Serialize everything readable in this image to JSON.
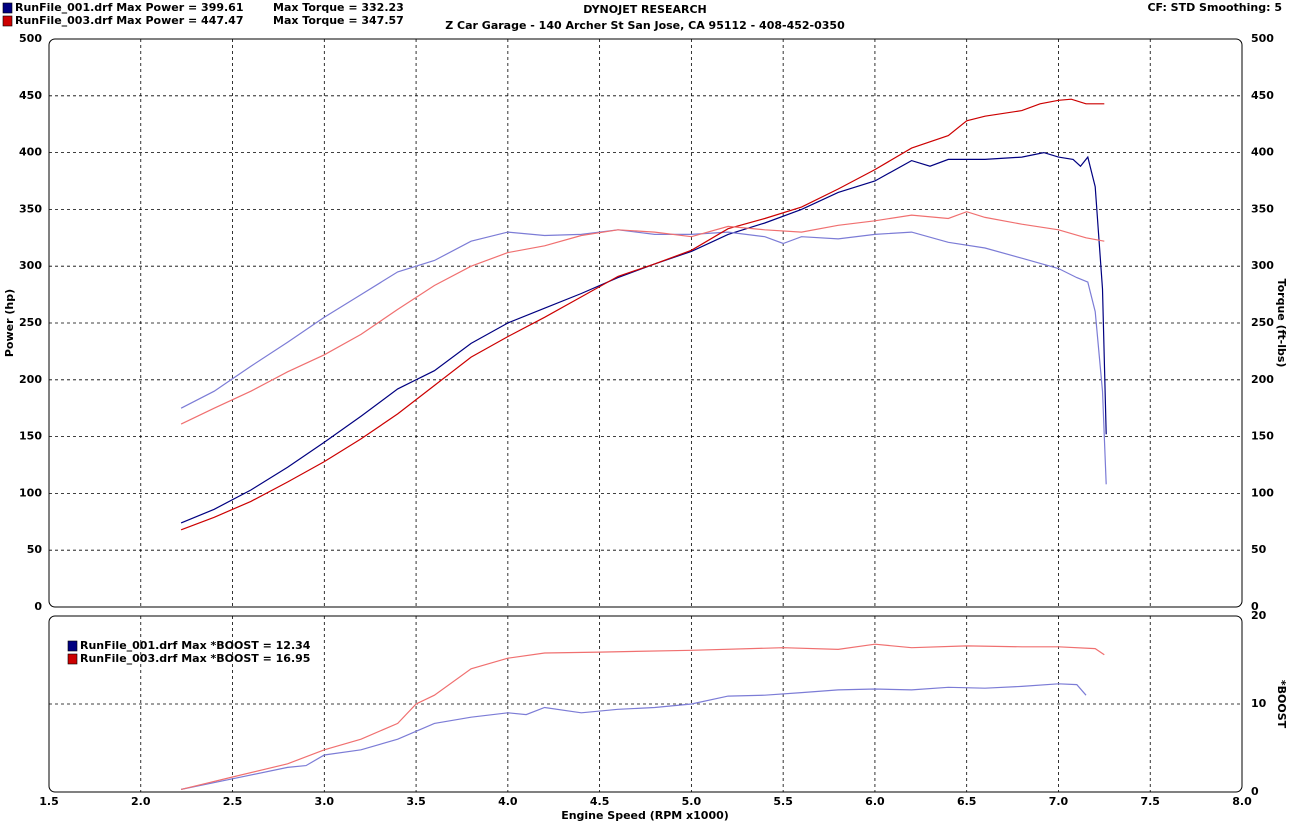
{
  "chart_data": [
    {
      "type": "line",
      "title": "DYNOJET RESEARCH",
      "subtitle": "Z Car Garage - 140 Archer St San Jose, CA 95112 - 408-452-0350",
      "annotations": [
        "CF: STD  Smoothing: 5"
      ],
      "y_label": "Power (hp)",
      "y2_label": "Torque (ft-lbs)",
      "ylim": [
        0,
        500
      ],
      "yticks": [
        0,
        50,
        100,
        150,
        200,
        250,
        300,
        350,
        400,
        450,
        500
      ],
      "y2lim": [
        0,
        500
      ],
      "y2ticks": [
        0,
        50,
        100,
        150,
        200,
        250,
        300,
        350,
        400,
        450,
        500
      ],
      "grid": true,
      "series": [
        {
          "name": "RunFile_001.drf Max Power = 399.61",
          "color": "#000080",
          "x": [
            2.22,
            2.4,
            2.6,
            2.8,
            3.0,
            3.2,
            3.4,
            3.6,
            3.8,
            4.0,
            4.2,
            4.4,
            4.6,
            4.8,
            5.0,
            5.2,
            5.4,
            5.6,
            5.8,
            6.0,
            6.2,
            6.3,
            6.4,
            6.6,
            6.8,
            6.92,
            7.0,
            7.08,
            7.12,
            7.16,
            7.2,
            7.24,
            7.26
          ],
          "values": [
            74,
            86,
            103,
            123,
            145,
            168,
            192,
            208,
            232,
            250,
            263,
            276,
            290,
            302,
            313,
            328,
            338,
            350,
            365,
            375,
            393,
            388,
            394,
            394,
            396,
            400,
            396,
            394,
            388,
            396,
            370,
            280,
            152
          ]
        },
        {
          "name": "Max Torque = 332.23",
          "color": "#7c7cd6",
          "axis": "y2",
          "x": [
            2.22,
            2.4,
            2.6,
            2.8,
            3.0,
            3.2,
            3.4,
            3.6,
            3.8,
            4.0,
            4.2,
            4.4,
            4.6,
            4.8,
            5.0,
            5.2,
            5.4,
            5.5,
            5.6,
            5.8,
            6.0,
            6.2,
            6.4,
            6.6,
            6.8,
            7.0,
            7.1,
            7.16,
            7.2,
            7.24,
            7.26
          ],
          "values": [
            175,
            190,
            212,
            233,
            255,
            275,
            295,
            305,
            322,
            330,
            327,
            328,
            332,
            328,
            328,
            330,
            326,
            320,
            326,
            324,
            328,
            330,
            321,
            316,
            307,
            298,
            290,
            286,
            260,
            190,
            108
          ]
        },
        {
          "name": "RunFile_003.drf Max Power = 447.47",
          "color": "#cc0000",
          "x": [
            2.22,
            2.4,
            2.6,
            2.8,
            3.0,
            3.2,
            3.4,
            3.6,
            3.8,
            4.0,
            4.2,
            4.4,
            4.6,
            4.8,
            5.0,
            5.2,
            5.4,
            5.6,
            5.8,
            6.0,
            6.2,
            6.4,
            6.5,
            6.6,
            6.8,
            6.9,
            7.0,
            7.07,
            7.15,
            7.25
          ],
          "values": [
            68,
            79,
            93,
            110,
            128,
            148,
            170,
            195,
            220,
            238,
            255,
            273,
            291,
            302,
            314,
            333,
            342,
            352,
            368,
            385,
            404,
            415,
            428,
            432,
            437,
            443,
            446,
            447,
            443,
            443
          ]
        },
        {
          "name": "Max Torque = 347.57",
          "color": "#f07070",
          "axis": "y2",
          "x": [
            2.22,
            2.4,
            2.6,
            2.8,
            3.0,
            3.2,
            3.4,
            3.6,
            3.8,
            4.0,
            4.2,
            4.4,
            4.6,
            4.8,
            5.0,
            5.2,
            5.4,
            5.6,
            5.8,
            6.0,
            6.2,
            6.4,
            6.5,
            6.6,
            6.8,
            7.0,
            7.15,
            7.25
          ],
          "values": [
            161,
            175,
            190,
            207,
            222,
            240,
            262,
            283,
            300,
            312,
            318,
            327,
            332,
            330,
            326,
            335,
            332,
            330,
            336,
            340,
            345,
            342,
            348,
            343,
            337,
            332,
            325,
            322
          ]
        }
      ]
    },
    {
      "type": "line",
      "x_label": "Engine Speed (RPM x1000)",
      "y2_label": "*BOOST",
      "xlim": [
        1.5,
        8.0
      ],
      "xticks": [
        1.5,
        {
          "value": 2,
          "label": "2.0"
        },
        2.5,
        {
          "value": 3,
          "label": "3.0"
        },
        3.5,
        {
          "value": 4,
          "label": "4.0"
        },
        4.5,
        {
          "value": 5,
          "label": "5.0"
        },
        5.5,
        {
          "value": 6,
          "label": "6.0"
        },
        6.5,
        {
          "value": 7,
          "label": "7.0"
        },
        7.5,
        {
          "value": 8,
          "label": "8.0"
        }
      ],
      "y2lim": [
        0,
        20
      ],
      "y2ticks": [
        0,
        10,
        20
      ],
      "grid": true,
      "series": [
        {
          "name": "RunFile_001.drf Max *BOOST = 12.34",
          "color": "#7c7cd6",
          "axis": "y2",
          "x": [
            2.22,
            2.5,
            2.8,
            2.9,
            3.0,
            3.2,
            3.4,
            3.6,
            3.8,
            4.0,
            4.1,
            4.2,
            4.4,
            4.6,
            4.8,
            5.0,
            5.2,
            5.4,
            5.6,
            5.8,
            6.0,
            6.2,
            6.4,
            6.6,
            6.8,
            7.0,
            7.1,
            7.15
          ],
          "values": [
            0.3,
            1.5,
            2.8,
            3.0,
            4.2,
            4.8,
            6.0,
            7.8,
            8.5,
            9.0,
            8.8,
            9.6,
            9.0,
            9.4,
            9.6,
            10.0,
            10.9,
            11.0,
            11.3,
            11.6,
            11.7,
            11.6,
            11.9,
            11.8,
            12.0,
            12.3,
            12.2,
            11.0
          ]
        },
        {
          "name": "RunFile_003.drf Max *BOOST = 16.95",
          "color": "#f07070",
          "axis": "y2",
          "x": [
            2.22,
            2.5,
            2.8,
            3.0,
            3.2,
            3.4,
            3.5,
            3.6,
            3.8,
            4.0,
            4.2,
            4.5,
            5.0,
            5.5,
            5.8,
            6.0,
            6.2,
            6.5,
            6.8,
            7.0,
            7.2,
            7.25
          ],
          "values": [
            0.3,
            1.7,
            3.2,
            4.8,
            6.0,
            7.8,
            10.0,
            11.0,
            14.0,
            15.2,
            15.8,
            15.9,
            16.1,
            16.4,
            16.2,
            16.8,
            16.4,
            16.6,
            16.5,
            16.5,
            16.3,
            15.6
          ]
        }
      ]
    }
  ]
}
